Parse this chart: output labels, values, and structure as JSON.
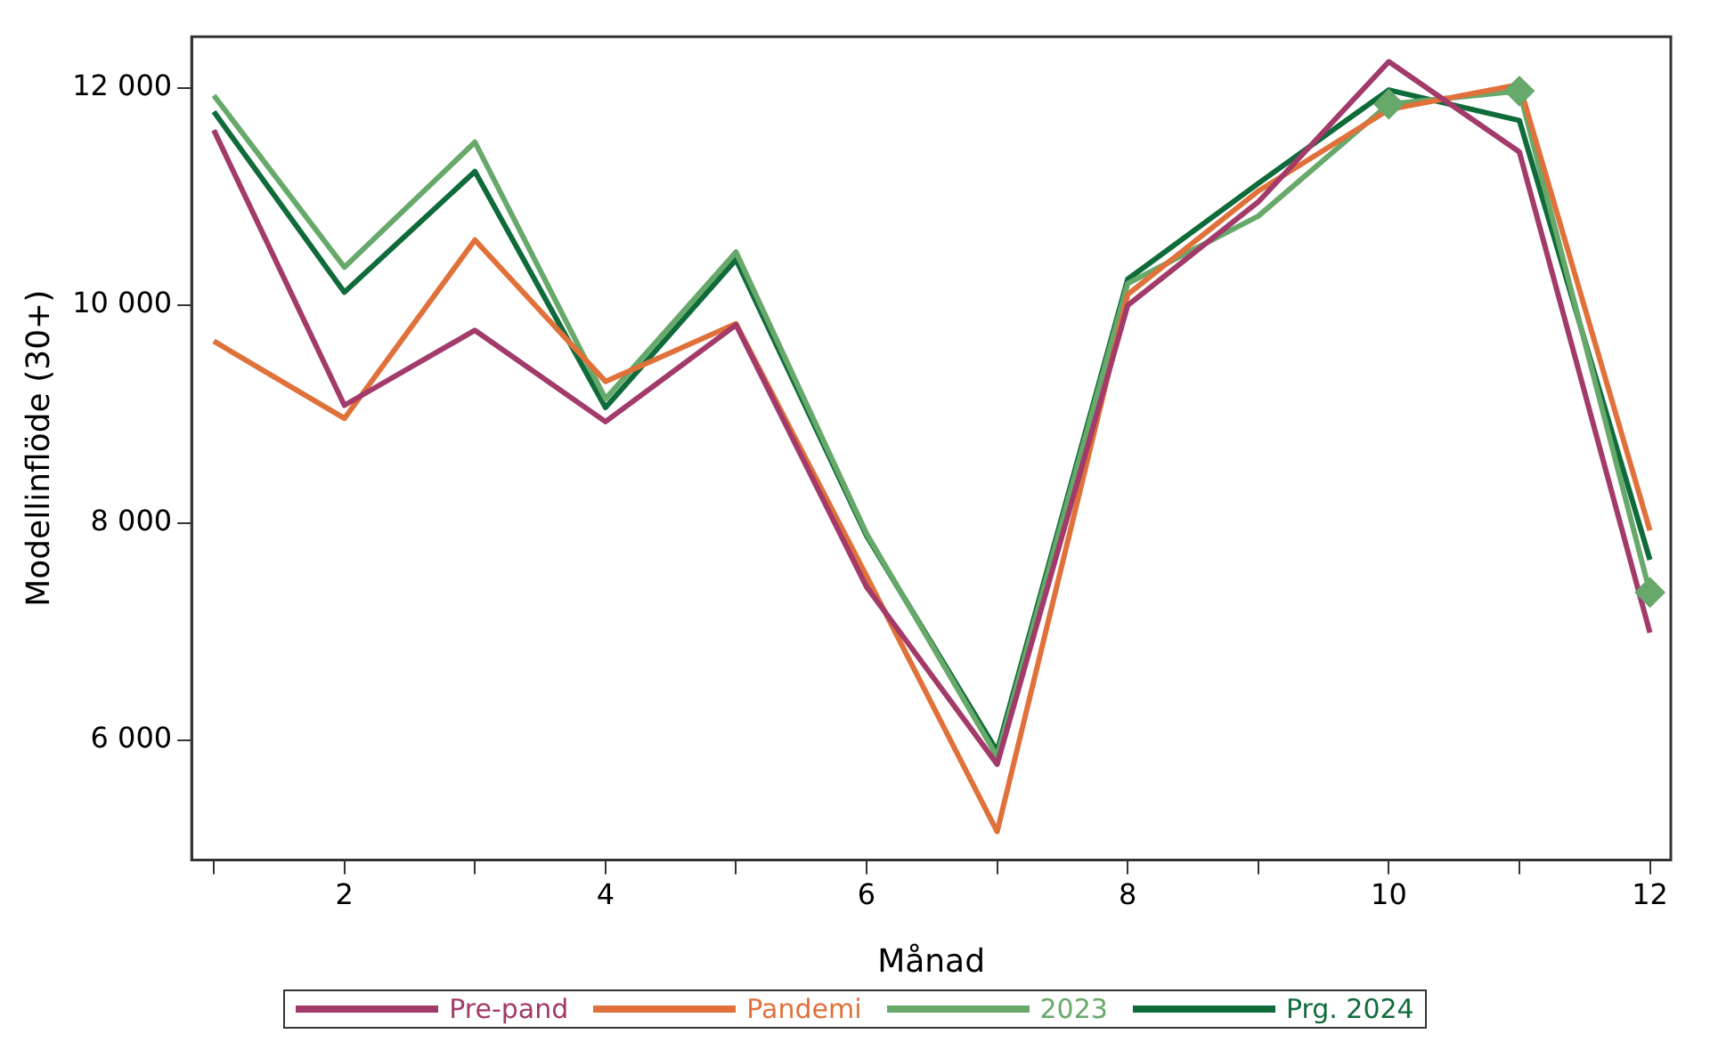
{
  "chart_data": {
    "type": "line",
    "xlabel": "Månad",
    "ylabel": "Modellinflöde (30+)",
    "x": [
      1,
      2,
      3,
      4,
      5,
      6,
      7,
      8,
      9,
      10,
      11,
      12
    ],
    "xlim": [
      0.83,
      12.16
    ],
    "xticks": [
      {
        "value": 1,
        "label": null
      },
      2,
      {
        "value": 3,
        "label": null
      },
      4,
      {
        "value": 5,
        "label": null
      },
      6,
      {
        "value": 7,
        "label": null
      },
      8,
      {
        "value": 9,
        "label": null
      },
      10,
      {
        "value": 11,
        "label": null
      },
      12
    ],
    "ylim": [
      4900,
      12470
    ],
    "yticks": [
      {
        "value": 6000,
        "label": "6 000"
      },
      {
        "value": 8000,
        "label": "8 000"
      },
      {
        "value": 10000,
        "label": "10 000"
      },
      {
        "value": 12000,
        "label": "12 000"
      }
    ],
    "grid": false,
    "legend": "bottom",
    "marker": "none",
    "line_style": "solid",
    "series": [
      {
        "name": "Pre-pand",
        "color": "#a23a6a",
        "values": [
          11610,
          9080,
          9770,
          8930,
          9820,
          7410,
          5780,
          10000,
          10950,
          12240,
          11410,
          6990
        ]
      },
      {
        "name": "Pandemi",
        "color": "#e0713a",
        "values": [
          9670,
          8960,
          10600,
          9300,
          9830,
          7510,
          5160,
          10100,
          11050,
          11800,
          12030,
          7930
        ]
      },
      {
        "name": "2023",
        "color": "#67a86b",
        "values": [
          11930,
          10350,
          11500,
          9140,
          10490,
          7900,
          5850,
          10200,
          10820,
          11850,
          11970,
          7360
        ]
      },
      {
        "name": "Prg. 2024",
        "color": "#0f6b3a",
        "values": [
          11780,
          10120,
          11230,
          9060,
          10420,
          7880,
          5900,
          10240,
          11120,
          11980,
          11700,
          7660
        ]
      },
      {
        "type": "scatter",
        "marker": "diamond",
        "color": "#67a86b",
        "x": [
          10,
          11,
          12
        ],
        "values": [
          11850,
          11970,
          7360
        ]
      }
    ]
  }
}
